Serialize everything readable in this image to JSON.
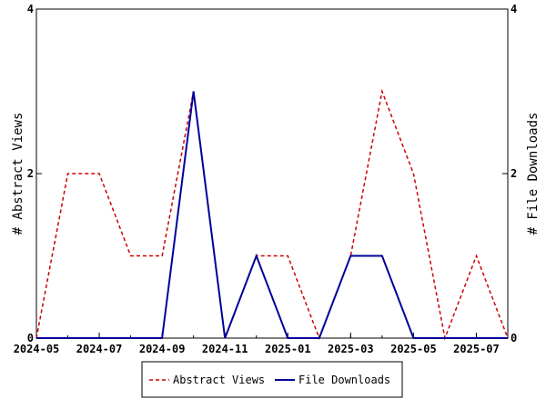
{
  "chart_data": {
    "type": "line",
    "x": [
      "2024-05",
      "2024-06",
      "2024-07",
      "2024-08",
      "2024-09",
      "2024-10",
      "2024-11",
      "2024-12",
      "2025-01",
      "2025-02",
      "2025-03",
      "2025-04",
      "2025-05",
      "2025-06",
      "2025-07",
      "2025-08"
    ],
    "xticks": [
      "2024-05",
      "2024-07",
      "2024-09",
      "2024-11",
      "2025-01",
      "2025-03",
      "2025-05",
      "2025-07"
    ],
    "ylabel": "# Abstract Views",
    "y2label": "# File Downloads",
    "ylim": [
      0,
      4
    ],
    "yticks": [
      0,
      2,
      4
    ],
    "y2lim": [
      0,
      4
    ],
    "y2ticks": [
      0,
      2,
      4
    ],
    "legend": "bottom",
    "series": [
      {
        "name": "Abstract Views",
        "color": "#cc0000",
        "dashed": true,
        "values": [
          0,
          2,
          2,
          1,
          1,
          3,
          0,
          1,
          1,
          0,
          1,
          3,
          2,
          0,
          1,
          0
        ]
      },
      {
        "name": "File Downloads",
        "color": "#000099",
        "axis": "y2",
        "values": [
          0,
          0,
          0,
          0,
          0,
          3,
          0,
          1,
          0,
          0,
          1,
          1,
          0,
          0,
          0,
          0
        ]
      }
    ]
  }
}
